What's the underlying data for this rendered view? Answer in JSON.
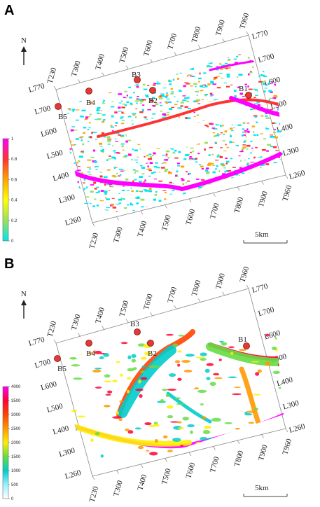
{
  "panels": [
    {
      "id": "A",
      "label": "A",
      "north": "N",
      "scale_bar": "5km",
      "colorbar": {
        "ticks": [
          "1",
          "0.8",
          "0.6",
          "0.4",
          "0.2",
          "0"
        ],
        "colors": [
          "#ff00ff",
          "#ff3333",
          "#ffa500",
          "#ffff00",
          "#9be15d",
          "#00e5ee"
        ]
      },
      "wells": [
        "B4",
        "B3",
        "B2",
        "B1",
        "B5"
      ],
      "top_traces": [
        "T230",
        "T300",
        "T400",
        "T500",
        "T600",
        "T700",
        "T800",
        "T900",
        "T960"
      ],
      "bottom_traces": [
        "T230",
        "T300",
        "T400",
        "T500",
        "T600",
        "T700",
        "T800",
        "T900",
        "T960"
      ],
      "left_lines": [
        "L770",
        "L700",
        "L600",
        "L500",
        "L400",
        "L300",
        "L260"
      ],
      "right_lines": [
        "L770",
        "L700",
        "L600",
        "L500",
        "L400",
        "L300",
        "L260"
      ]
    },
    {
      "id": "B",
      "label": "B",
      "north": "N",
      "scale_bar": "5km",
      "colorbar": {
        "ticks": [
          "4000",
          "3500",
          "3000",
          "2500",
          "2000",
          "1500",
          "1000",
          "500",
          "0"
        ],
        "colors": [
          "#ff00ff",
          "#ff0033",
          "#ff4400",
          "#ff9900",
          "#ffee00",
          "#66dd44",
          "#00cccc",
          "#99f0ff",
          "#ffffff"
        ]
      },
      "wells": [
        "B3",
        "B4",
        "B2",
        "B1",
        "B5"
      ],
      "top_traces": [
        "T230",
        "T300",
        "T400",
        "T500",
        "T600",
        "T700",
        "T800",
        "T900",
        "T960"
      ],
      "bottom_traces": [
        "T230",
        "T300",
        "T400",
        "T500",
        "T600",
        "T700",
        "T800",
        "T900",
        "T960"
      ],
      "left_lines": [
        "L770",
        "L700",
        "L600",
        "L500",
        "L400",
        "L300",
        "L260"
      ],
      "right_lines": [
        "L770",
        "L700",
        "L600",
        "L500",
        "L400",
        "L300",
        "L260"
      ]
    }
  ]
}
